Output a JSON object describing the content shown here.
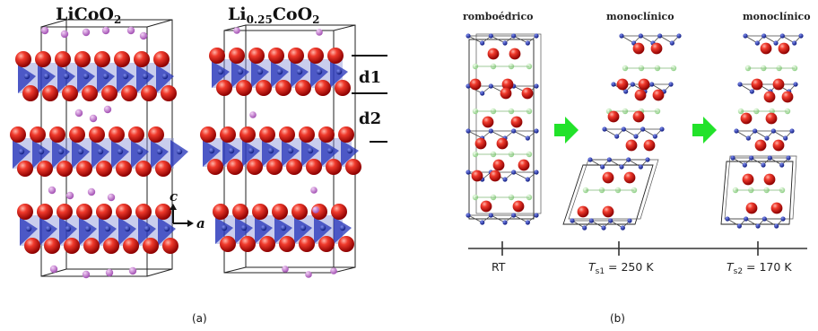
{
  "panel_a": {
    "left_title": {
      "base": "LiCoO",
      "sub": "2"
    },
    "right_title": {
      "base": "Li",
      "sub1": "0.25",
      "mid": "CoO",
      "sub2": "2"
    },
    "d1_label": "d1",
    "d2_label": "d2",
    "axis_c": "c",
    "axis_a": "a",
    "caption": "(a)"
  },
  "panel_b": {
    "phase_labels": [
      "romboédrico",
      "monoclínico",
      "monoclínico"
    ],
    "temperatures": [
      {
        "text": "RT"
      },
      {
        "T": "T",
        "sub": "s1",
        "value": " = 250 K"
      },
      {
        "T": "T",
        "sub": "s2",
        "value": " = 170 K"
      }
    ],
    "caption": "(b)"
  },
  "colors": {
    "oxygen": "#e11b1b",
    "cobalt_polyhedra": "#1c2ab0",
    "lithium_a": "#c37ad0",
    "lithium_b": "#a8e0a0",
    "cobalt_b": "#1d3ba8",
    "arrow": "#22e22a",
    "cell_line": "#222222"
  }
}
